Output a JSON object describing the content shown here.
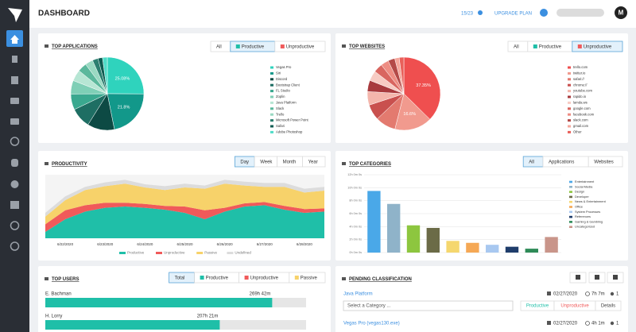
{
  "header": {
    "title": "DASHBOARD",
    "seats": "15/23",
    "upgrade": "UPGRADE PLAN",
    "avatar": "M"
  },
  "top_applications": {
    "title": "TOP APPLICATIONS",
    "filters": [
      "All",
      "Productive",
      "Unproductive"
    ],
    "active_filter": "Productive",
    "chart_data": {
      "type": "pie",
      "categories": [
        "Vegas Pro",
        "Siri",
        "Discord",
        "Bootstrap Client",
        "FL Studio",
        "Zoplin",
        "Java Platform",
        "Slack",
        "Trello",
        "Microsoft Power Point",
        "Safari",
        "Adobe Photoshop"
      ],
      "values": [
        25.08,
        21.8,
        12,
        9,
        7,
        6,
        5,
        4,
        3.5,
        2.5,
        2,
        2.12
      ],
      "value_labels": [
        "25.08%",
        "21.8%",
        null,
        null,
        null,
        null,
        null,
        null,
        null,
        null,
        null,
        null
      ],
      "colors": [
        "#2fd3bd",
        "#12988a",
        "#0d4a44",
        "#1e6e63",
        "#3aa88f",
        "#7fcfb6",
        "#b7e6d4",
        "#5bb89c",
        "#9ad9c2",
        "#2c7f70",
        "#0f5c52",
        "#50dcc8"
      ]
    }
  },
  "top_websites": {
    "title": "TOP WEBSITES",
    "filters": [
      "All",
      "Productive",
      "Unproductive"
    ],
    "active_filter": "Unproductive",
    "chart_data": {
      "type": "pie",
      "categories": [
        "trello.com",
        "twitter.io",
        "safari://",
        "chrome://",
        "youtube.com",
        "rapido.io",
        "lamda.ws",
        "google.com",
        "facebook.com",
        "slack.com",
        "gmail.com",
        "Other"
      ],
      "values": [
        37.35,
        16.6,
        9,
        7,
        6,
        5,
        4.5,
        4,
        3.5,
        3,
        2,
        2.05
      ],
      "value_labels": [
        "37.35%",
        "16.6%",
        null,
        null,
        null,
        null,
        null,
        null,
        null,
        null,
        null,
        null
      ],
      "colors": [
        "#ef4f4f",
        "#f19a8e",
        "#e37a6f",
        "#c9504e",
        "#f4b6ac",
        "#a83a3d",
        "#f7cbc3",
        "#d96660",
        "#ee8d83",
        "#b44a48",
        "#f5a79c",
        "#e9605a"
      ]
    }
  },
  "productivity": {
    "title": "PRODUCTIVITY",
    "filters": [
      "Day",
      "Week",
      "Month",
      "Year"
    ],
    "active_filter": "Day",
    "chart_data": {
      "type": "stacked-area",
      "categories": [
        null,
        "6/22/2020",
        null,
        "6/23/2020",
        null,
        "6/24/2020",
        null,
        "6/25/2020",
        null,
        "6/26/2020",
        null,
        "6/27/2020",
        null,
        "6/28/2020",
        null
      ],
      "ylim": [
        0,
        100
      ],
      "series": [
        {
          "name": "Productive",
          "color": "#1fbfa8",
          "values": [
            10,
            30,
            42,
            48,
            50,
            48,
            45,
            40,
            30,
            42,
            50,
            52,
            45,
            40,
            42
          ]
        },
        {
          "name": "Unproductive",
          "color": "#f05a5a",
          "values": [
            12,
            14,
            10,
            8,
            6,
            6,
            6,
            10,
            14,
            6,
            5,
            5,
            6,
            6,
            5
          ]
        },
        {
          "name": "Passive",
          "color": "#f7d26a",
          "values": [
            12,
            16,
            24,
            26,
            30,
            26,
            25,
            30,
            34,
            38,
            28,
            24,
            30,
            26,
            28
          ]
        },
        {
          "name": "Undefined",
          "color": "#dcdcdc",
          "values": [
            6,
            6,
            5,
            6,
            6,
            5,
            6,
            6,
            5,
            6,
            6,
            6,
            6,
            6,
            6
          ]
        }
      ]
    }
  },
  "top_categories": {
    "title": "TOP CATEGORIES",
    "filters": [
      "All",
      "Applications",
      "Websites"
    ],
    "active_filter": "All",
    "chart_data": {
      "type": "bar",
      "categories": [
        "Entertainment",
        "Social Media",
        "Design",
        "Developer",
        "News & Entertainment",
        "Office",
        "System Processes",
        "References",
        "Gaming & Gambling",
        "Uncategorized"
      ],
      "values": [
        9.5,
        7.5,
        4.2,
        3.8,
        1.8,
        1.5,
        1.2,
        0.9,
        0.6,
        2.4
      ],
      "colors": [
        "#4aa8e8",
        "#8fb3c9",
        "#8dc63f",
        "#6b6b47",
        "#f5d76e",
        "#f5a855",
        "#a8c8f0",
        "#1f3d6b",
        "#2e8b57",
        "#c9958a"
      ],
      "ylim": [
        0,
        12
      ],
      "yticks": [
        {
          "value": 0,
          "label": "0h 0m 0s"
        },
        {
          "value": 2,
          "label": "2h 0m 0s"
        },
        {
          "value": 4,
          "label": "4h 0m 0s"
        },
        {
          "value": 6,
          "label": "6h 0m 0s"
        },
        {
          "value": 8,
          "label": "8h 0m 0s"
        },
        {
          "value": 10,
          "label": "10h 0m 0s"
        },
        {
          "value": 12,
          "label": "12h 0m 0s"
        }
      ],
      "grid": true
    }
  },
  "top_users": {
    "title": "TOP USERS",
    "filters": [
      "Total",
      "Productive",
      "Unproductive",
      "Passive"
    ],
    "filter_colors": [
      null,
      "#1fbfa8",
      "#f05a5a",
      "#f7d26a"
    ],
    "active_filter": "Total",
    "chart_data": {
      "type": "hbar",
      "color": "#1fbfa8",
      "xlim": [
        0,
        310
      ],
      "categories": [
        "E. Bachman",
        "H. Lorry"
      ],
      "values": [
        269.7,
        207.35
      ],
      "value_labels": [
        "269h 42m",
        "207h 21m"
      ]
    }
  },
  "pending_classification": {
    "title": "PENDING CLASSIFICATION",
    "select_placeholder": "Select a Category ...",
    "actions": [
      "Productive",
      "Unproductive",
      "Details"
    ],
    "rows": [
      {
        "name": "Java Platform",
        "date": "02/27/2020",
        "duration": "7h 7m",
        "users": "1"
      },
      {
        "name": "Vegas Pro (vegas130.exe)",
        "date": "02/27/2020",
        "duration": "4h 1m",
        "users": "1"
      }
    ]
  }
}
